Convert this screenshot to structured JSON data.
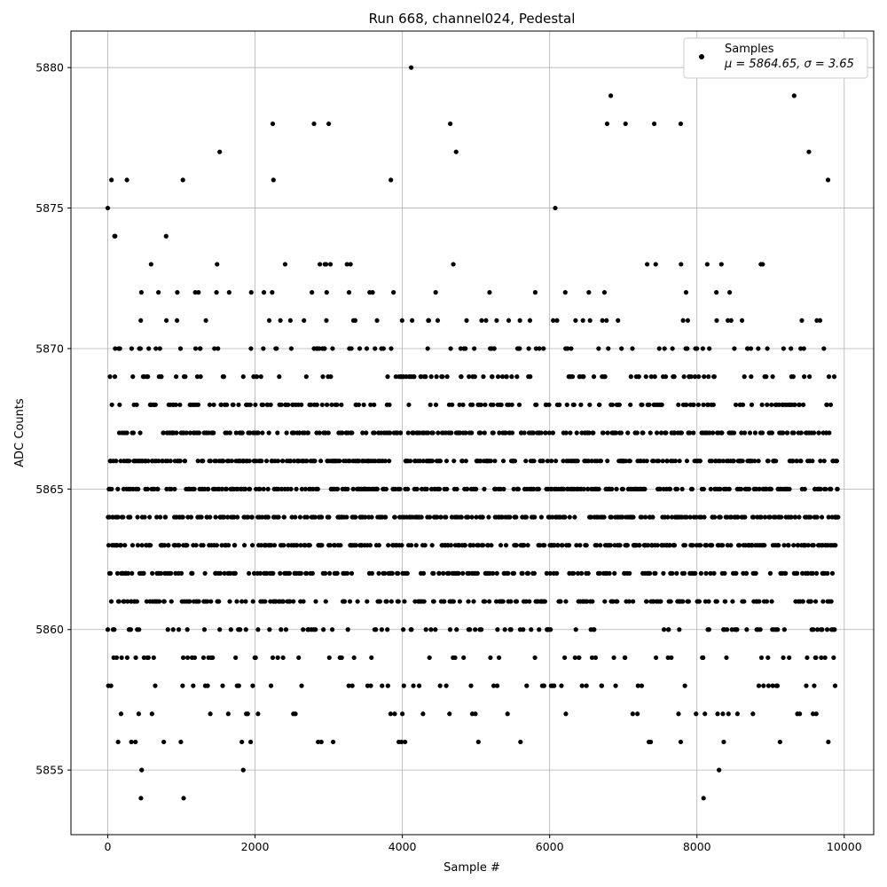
{
  "chart_data": {
    "type": "scatter",
    "title": "Run 668, channel024, Pedestal",
    "xlabel": "Sample #",
    "ylabel": "ADC Counts",
    "xlim": [
      -500,
      10400
    ],
    "ylim": [
      5852.7,
      5881.3
    ],
    "xticks": [
      0,
      2000,
      4000,
      6000,
      8000,
      10000
    ],
    "yticks": [
      5855,
      5860,
      5865,
      5870,
      5875,
      5880
    ],
    "grid": true,
    "legend": {
      "placement": "top-right",
      "entries": [
        {
          "label": "Samples",
          "stats_line": "μ = 5864.65, σ = 3.65"
        }
      ]
    },
    "series": [
      {
        "name": "Samples",
        "color": "#000000",
        "marker": "circle",
        "n_points": 9920,
        "mean": 5864.65,
        "std": 3.65,
        "sampled_points": [
          [
            0,
            5875
          ],
          [
            30,
            5869
          ],
          [
            50,
            5876
          ],
          [
            100,
            5874
          ],
          [
            140,
            5856
          ],
          [
            180,
            5857
          ],
          [
            260,
            5876
          ],
          [
            320,
            5856
          ],
          [
            420,
            5857
          ],
          [
            460,
            5855
          ],
          [
            450,
            5854
          ],
          [
            600,
            5857
          ],
          [
            760,
            5856
          ],
          [
            1020,
            5876
          ],
          [
            1030,
            5854
          ],
          [
            1160,
            5858
          ],
          [
            1520,
            5877
          ],
          [
            1560,
            5858
          ],
          [
            1820,
            5856
          ],
          [
            1840,
            5855
          ],
          [
            1880,
            5857
          ],
          [
            2040,
            5857
          ],
          [
            2240,
            5878
          ],
          [
            2250,
            5876
          ],
          [
            2520,
            5857
          ],
          [
            2800,
            5878
          ],
          [
            3000,
            5878
          ],
          [
            3320,
            5858
          ],
          [
            4000,
            5857
          ],
          [
            4120,
            5880
          ],
          [
            4150,
            5858
          ],
          [
            4650,
            5878
          ],
          [
            4730,
            5877
          ],
          [
            4950,
            5857
          ],
          [
            6020,
            5858
          ],
          [
            6220,
            5857
          ],
          [
            6500,
            5858
          ],
          [
            6780,
            5878
          ],
          [
            6830,
            5879
          ],
          [
            7030,
            5878
          ],
          [
            7250,
            5858
          ],
          [
            7420,
            5878
          ],
          [
            7750,
            5857
          ],
          [
            7780,
            5878
          ],
          [
            8090,
            5854
          ],
          [
            8280,
            5857
          ],
          [
            8300,
            5855
          ],
          [
            8550,
            5857
          ],
          [
            9030,
            5858
          ],
          [
            9320,
            5879
          ],
          [
            9520,
            5877
          ],
          [
            9620,
            5857
          ],
          [
            9780,
            5876
          ],
          [
            9880,
            5863
          ]
        ]
      }
    ]
  }
}
